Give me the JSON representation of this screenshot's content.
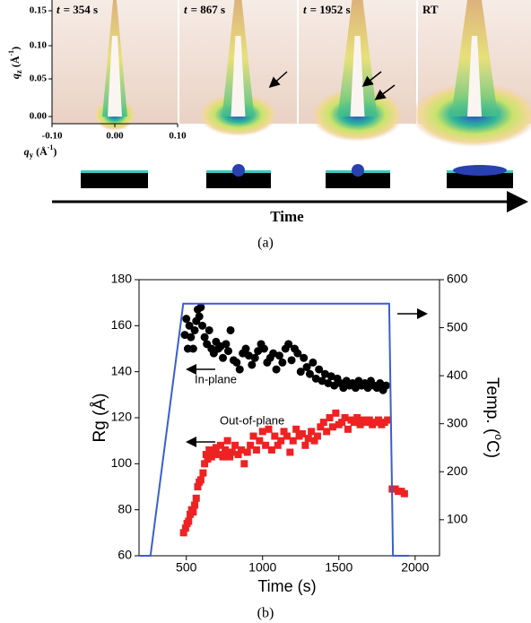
{
  "panel_a": {
    "images": [
      {
        "var": "t",
        "text": "= 354 s"
      },
      {
        "var": "t",
        "text": "= 867 s"
      },
      {
        "var": "t",
        "text": "= 1952 s"
      },
      {
        "text": "RT"
      }
    ],
    "qz_ticks": [
      "0.00",
      "0.05",
      "0.10",
      "0.15"
    ],
    "qy_ticks": [
      "-0.10",
      "0.00",
      "0.10"
    ],
    "qz_label": {
      "symbol": "q",
      "subscript": "z",
      "unit": "(Å",
      "exponent": "-1",
      "close": ")"
    },
    "qy_label": {
      "symbol": "q",
      "subscript": "y",
      "unit": "(Å",
      "exponent": "-1",
      "close": ")"
    },
    "time_label": "Time",
    "caption": "(a)"
  },
  "chart_data": {
    "type": "scatter",
    "xlabel": "Time (s)",
    "ylabel": "Rg (Å)",
    "y2label": {
      "text": "Temp. (",
      "sup": "o",
      "close": "C)"
    },
    "xlim": [
      190,
      2160
    ],
    "xticks": [
      500,
      1000,
      1500,
      2000
    ],
    "ylim": [
      60,
      180
    ],
    "yticks": [
      60,
      80,
      100,
      120,
      140,
      160,
      180
    ],
    "y2lim": [
      25,
      600
    ],
    "y2ticks": [
      100,
      200,
      300,
      400,
      500,
      600
    ],
    "annotations": [
      "In-plane",
      "Out-of-plane"
    ],
    "series": [
      {
        "marker": "circle",
        "color": "#000000",
        "x": [
          490,
          500,
          510,
          520,
          530,
          545,
          555,
          565,
          575,
          585,
          595,
          605,
          620,
          635,
          650,
          665,
          680,
          695,
          710,
          725,
          740,
          760,
          775,
          790,
          810,
          830,
          850,
          870,
          890,
          910,
          930,
          950,
          970,
          990,
          1010,
          1030,
          1050,
          1070,
          1090,
          1110,
          1130,
          1150,
          1170,
          1190,
          1210,
          1230,
          1250,
          1270,
          1290,
          1310,
          1330,
          1350,
          1370,
          1390,
          1410,
          1430,
          1450,
          1470,
          1490,
          1510,
          1530,
          1550,
          1570,
          1590,
          1610,
          1630,
          1650,
          1670,
          1690,
          1710,
          1730,
          1750,
          1770,
          1790,
          1810
        ],
        "values": [
          156,
          163,
          150,
          160,
          155,
          150,
          158,
          162,
          167,
          164,
          168,
          160,
          155,
          152,
          158,
          150,
          148,
          153,
          150,
          151,
          146,
          152,
          149,
          158,
          145,
          144,
          141,
          148,
          150,
          147,
          143,
          146,
          149,
          152,
          150,
          144,
          146,
          148,
          141,
          147,
          144,
          150,
          152,
          145,
          150,
          148,
          140,
          146,
          142,
          139,
          144,
          137,
          141,
          136,
          139,
          135,
          138,
          134,
          137,
          135,
          133,
          136,
          134,
          135,
          133,
          136,
          134,
          135,
          133,
          136,
          134,
          133,
          135,
          132,
          134
        ]
      },
      {
        "marker": "square",
        "color": "#ee2222",
        "x": [
          482,
          495,
          505,
          515,
          525,
          535,
          545,
          555,
          565,
          575,
          585,
          595,
          610,
          620,
          630,
          640,
          650,
          665,
          680,
          695,
          710,
          725,
          740,
          755,
          770,
          785,
          800,
          820,
          840,
          860,
          880,
          900,
          920,
          940,
          960,
          980,
          1000,
          1020,
          1040,
          1060,
          1080,
          1100,
          1120,
          1140,
          1160,
          1180,
          1200,
          1220,
          1240,
          1260,
          1280,
          1300,
          1320,
          1340,
          1360,
          1380,
          1400,
          1420,
          1440,
          1460,
          1480,
          1500,
          1520,
          1540,
          1560,
          1580,
          1600,
          1620,
          1640,
          1660,
          1680,
          1700,
          1720,
          1740,
          1760,
          1780,
          1800,
          1820,
          1850,
          1870,
          1890,
          1910,
          1930
        ],
        "values": [
          70,
          72,
          74,
          75,
          78,
          80,
          79,
          82,
          85,
          90,
          92,
          93,
          96,
          100,
          104,
          102,
          106,
          103,
          105,
          107,
          104,
          108,
          103,
          106,
          110,
          103,
          105,
          108,
          104,
          106,
          100,
          105,
          108,
          112,
          106,
          110,
          114,
          108,
          115,
          106,
          112,
          108,
          110,
          114,
          112,
          105,
          110,
          115,
          112,
          113,
          108,
          111,
          114,
          110,
          112,
          116,
          118,
          114,
          120,
          116,
          122,
          117,
          118,
          120,
          115,
          119,
          118,
          120,
          117,
          119,
          118,
          119,
          117,
          118,
          119,
          117,
          118,
          119,
          89,
          89,
          88,
          88,
          87
        ]
      },
      {
        "marker": "line",
        "color": "#3a5fcd",
        "axis": "y2",
        "x": [
          190,
          265,
          480,
          1830,
          1855,
          1960
        ],
        "values": [
          25,
          25,
          550,
          550,
          25,
          25
        ]
      }
    ]
  }
}
